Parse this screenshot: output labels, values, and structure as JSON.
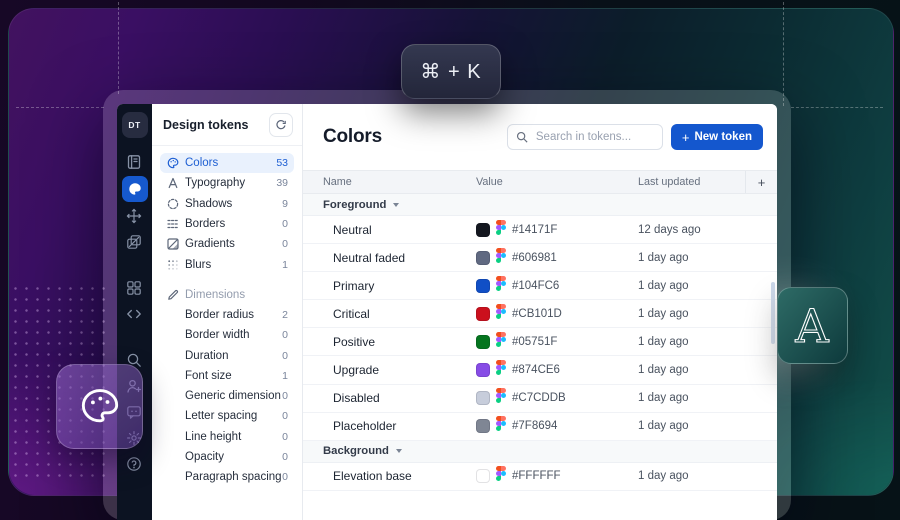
{
  "decor": {
    "shortcut": "⌘ + K",
    "letter_tile": "A"
  },
  "rail": {
    "logo": "DT",
    "items": [
      {
        "icon": "journal-icon"
      },
      {
        "icon": "app-logo-icon",
        "active": true
      },
      {
        "icon": "move-icon"
      },
      {
        "icon": "layers-icon"
      },
      {
        "icon": "components-icon"
      },
      {
        "icon": "code-icon"
      },
      {
        "icon": "search-icon"
      },
      {
        "icon": "invite-user-icon"
      },
      {
        "icon": "feedback-icon"
      },
      {
        "icon": "settings-icon"
      },
      {
        "icon": "help-icon"
      }
    ]
  },
  "sidebar": {
    "title": "Design tokens",
    "items": [
      {
        "label": "Colors",
        "count": "53",
        "icon": "palette-icon",
        "active": true
      },
      {
        "label": "Typography",
        "count": "39",
        "icon": "typography-icon"
      },
      {
        "label": "Shadows",
        "count": "9",
        "icon": "shadow-icon"
      },
      {
        "label": "Borders",
        "count": "0",
        "icon": "border-icon"
      },
      {
        "label": "Gradients",
        "count": "0",
        "icon": "gradient-icon"
      },
      {
        "label": "Blurs",
        "count": "1",
        "icon": "blur-icon"
      }
    ],
    "section_label": "Dimensions",
    "section_icon": "pencil-icon",
    "dimension_items": [
      {
        "label": "Border radius",
        "count": "2"
      },
      {
        "label": "Border width",
        "count": "0"
      },
      {
        "label": "Duration",
        "count": "0"
      },
      {
        "label": "Font size",
        "count": "1"
      },
      {
        "label": "Generic dimension",
        "count": "0"
      },
      {
        "label": "Letter spacing",
        "count": "0"
      },
      {
        "label": "Line height",
        "count": "0"
      },
      {
        "label": "Opacity",
        "count": "0"
      },
      {
        "label": "Paragraph spacing",
        "count": "0"
      }
    ]
  },
  "main": {
    "title": "Colors",
    "search_placeholder": "Search in tokens...",
    "new_token_plus": "+",
    "new_token_label": "New token",
    "add_column_label": "+",
    "table": {
      "columns": [
        "Name",
        "Value",
        "Last updated"
      ],
      "value_source_icon": "figma-icon",
      "groups": [
        {
          "name": "Foreground",
          "rows": [
            {
              "name": "Neutral",
              "hex": "#14171F",
              "updated": "12 days ago"
            },
            {
              "name": "Neutral faded",
              "hex": "#606981",
              "updated": "1 day ago"
            },
            {
              "name": "Primary",
              "hex": "#104FC6",
              "updated": "1 day ago"
            },
            {
              "name": "Critical",
              "hex": "#CB101D",
              "updated": "1 day ago"
            },
            {
              "name": "Positive",
              "hex": "#05751F",
              "updated": "1 day ago"
            },
            {
              "name": "Upgrade",
              "hex": "#874CE6",
              "updated": "1 day ago"
            },
            {
              "name": "Disabled",
              "hex": "#C7CDDB",
              "updated": "1 day ago"
            },
            {
              "name": "Placeholder",
              "hex": "#7F8694",
              "updated": "1 day ago"
            }
          ]
        },
        {
          "name": "Background",
          "rows": [
            {
              "name": "Elevation base",
              "hex": "#FFFFFF",
              "updated": "1 day ago"
            }
          ]
        }
      ]
    }
  },
  "colors": {
    "accent": "#1457CE",
    "selected_item_bg": "#E9F1FD",
    "rail_bg": "#0C1322"
  }
}
